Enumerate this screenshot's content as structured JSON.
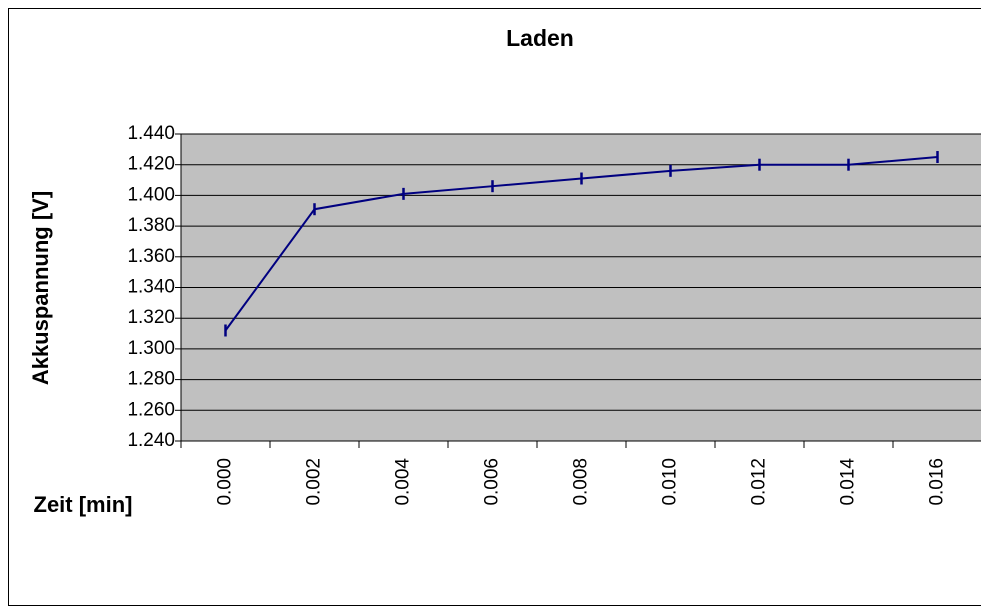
{
  "chart_data": {
    "type": "line",
    "title": "Laden",
    "x_label": "Zeit [min]",
    "y_label": "Akkuspannung [V]",
    "categories": [
      "0.000",
      "0.002",
      "0.004",
      "0.006",
      "0.008",
      "0.010",
      "0.012",
      "0.014",
      "0.016"
    ],
    "series": [
      {
        "name": "Akkuspannung",
        "color": "#000080",
        "values": [
          1.312,
          1.391,
          1.401,
          1.406,
          1.411,
          1.416,
          1.42,
          1.42,
          1.425
        ]
      }
    ],
    "ylim": [
      1.24,
      1.44
    ],
    "yticks": [
      {
        "value": 1.24,
        "label": "1.240"
      },
      {
        "value": 1.26,
        "label": "1.260"
      },
      {
        "value": 1.28,
        "label": "1.280"
      },
      {
        "value": 1.3,
        "label": "1.300"
      },
      {
        "value": 1.32,
        "label": "1.320"
      },
      {
        "value": 1.34,
        "label": "1.340"
      },
      {
        "value": 1.36,
        "label": "1.360"
      },
      {
        "value": 1.38,
        "label": "1.380"
      },
      {
        "value": 1.4,
        "label": "1.400"
      },
      {
        "value": 1.42,
        "label": "1.420"
      },
      {
        "value": 1.44,
        "label": "1.440"
      }
    ],
    "grid": true,
    "plot_background": "#c0c0c0"
  }
}
